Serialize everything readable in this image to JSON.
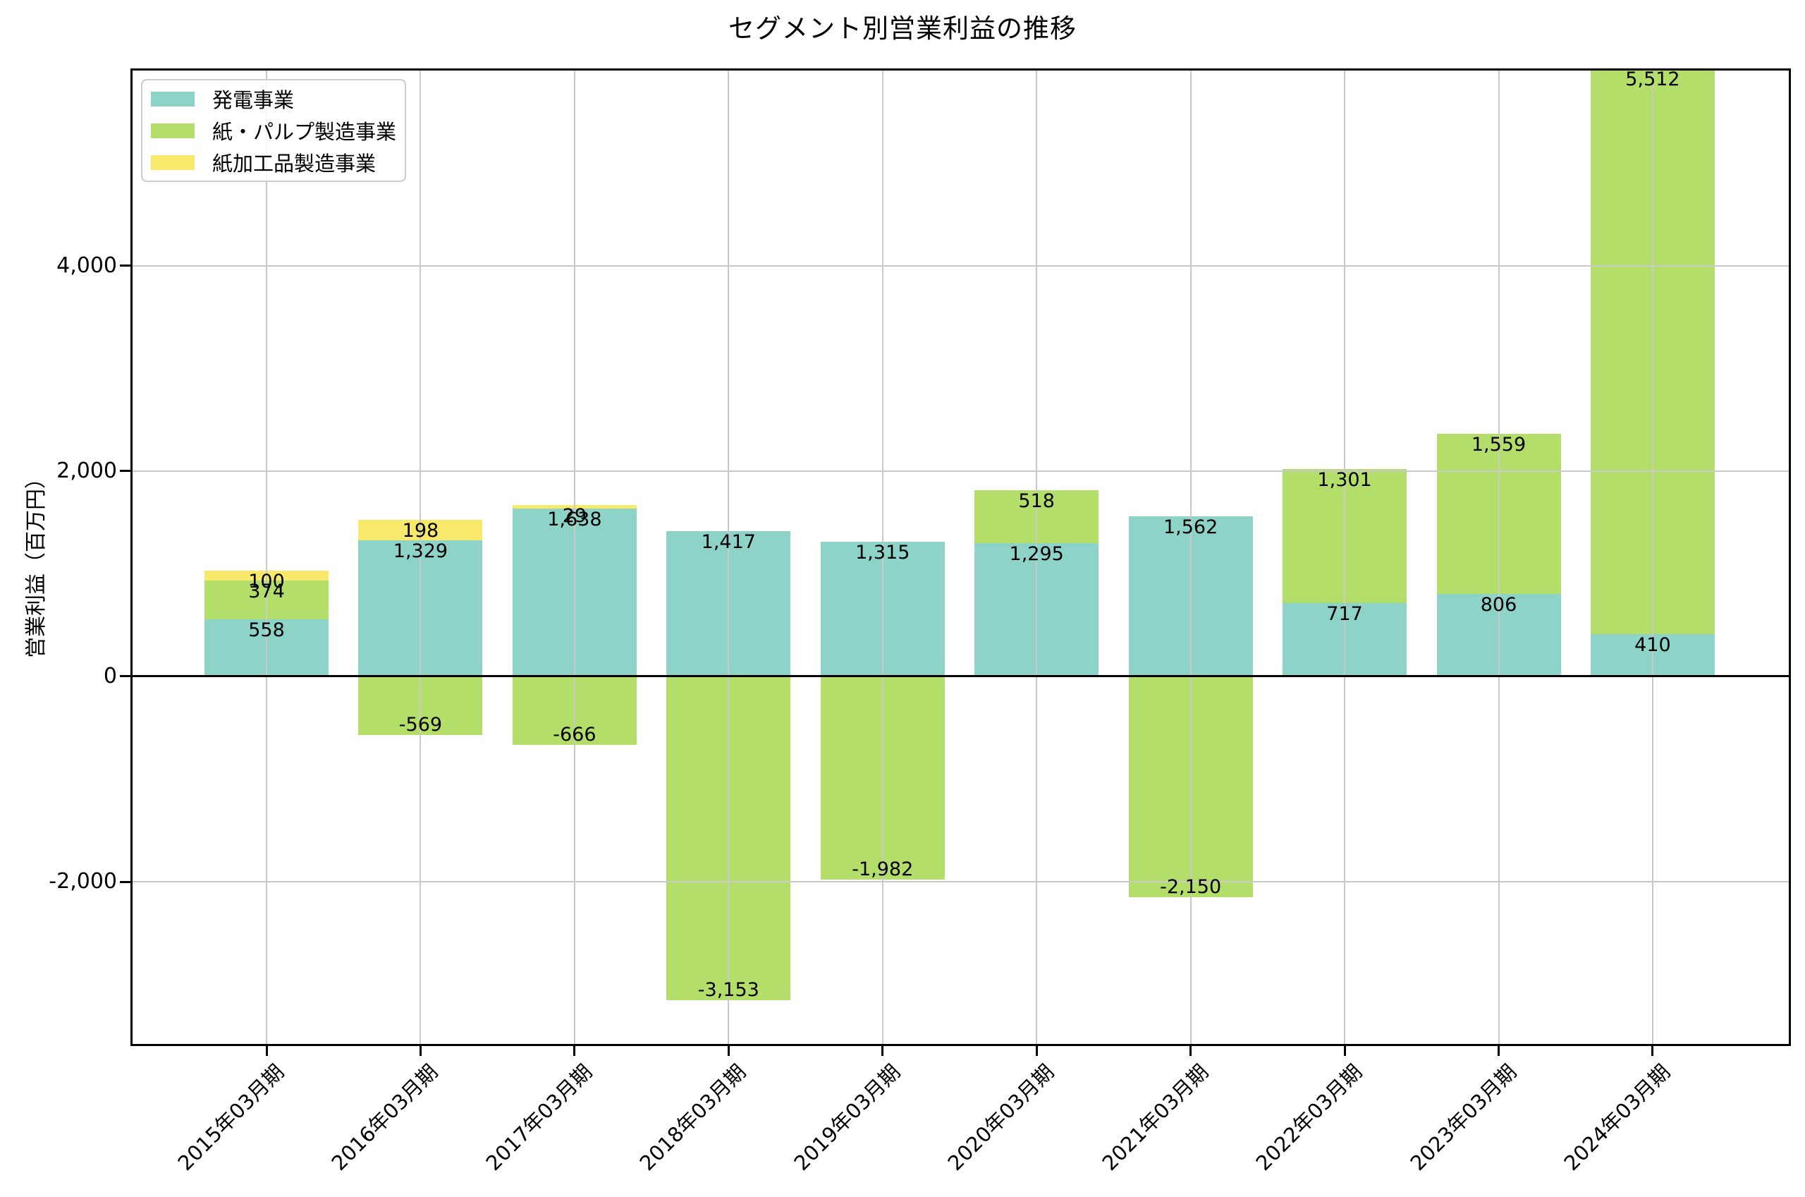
{
  "chart_data": {
    "type": "bar",
    "stacked": true,
    "title": "セグメント別営業利益の推移",
    "ylabel": "営業利益（百万円）",
    "xlabel": "",
    "categories": [
      "2015年03月期",
      "2016年03月期",
      "2017年03月期",
      "2018年03月期",
      "2019年03月期",
      "2020年03月期",
      "2021年03月期",
      "2022年03月期",
      "2023年03月期",
      "2024年03月期"
    ],
    "series": [
      {
        "name": "発電事業",
        "color": "#8dd3c7",
        "values": [
          558,
          1329,
          1638,
          1417,
          1315,
          1295,
          1562,
          717,
          806,
          410
        ]
      },
      {
        "name": "紙・パルプ製造事業",
        "color": "#b3de69",
        "values": [
          374,
          -569,
          -666,
          -3153,
          -1982,
          518,
          -2150,
          1301,
          1559,
          5512
        ]
      },
      {
        "name": "紙加工品製造事業",
        "color": "#f8e96a",
        "values": [
          100,
          198,
          29,
          null,
          null,
          null,
          null,
          null,
          null,
          null
        ]
      }
    ],
    "yticks": [
      -2000,
      0,
      2000,
      4000
    ],
    "ytick_labels": [
      "-2,000",
      "0",
      "2,000",
      "4,000"
    ],
    "ylim": [
      -3600,
      5922
    ],
    "grid": true,
    "grid_color": "#c9c9c9",
    "axis_color": "#000000",
    "zero_line": true,
    "legend_position": "upper-left",
    "bar_value_labels": true
  }
}
